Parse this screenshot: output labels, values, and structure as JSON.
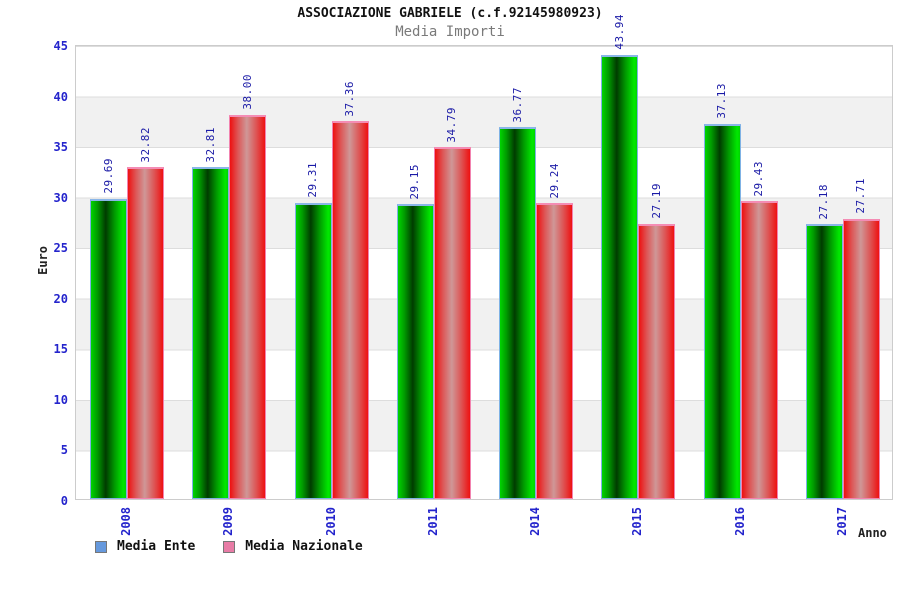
{
  "header": {
    "title": "ASSOCIAZIONE GABRIELE (c.f.92145980923)",
    "subtitle": "Media Importi"
  },
  "axes": {
    "ylabel": "Euro",
    "xlabel": "Anno"
  },
  "legend": {
    "items": [
      {
        "label": "Media Ente",
        "swatch_color": "#6699dd"
      },
      {
        "label": "Media Nazionale",
        "swatch_color": "#e87ca6"
      }
    ]
  },
  "colors": {
    "ente_bar_fill": "#00c800",
    "ente_bar_dark": "#003c00",
    "ente_bar_border": "#7fb2e5",
    "nazionale_bar_fill": "#ee1111",
    "nazionale_bar_highlight": "#cf9797",
    "nazionale_bar_border": "#f283b0",
    "tick_label_color": "#2424cc",
    "value_label_color": "#1a1aa6",
    "band_gray": "#f1f1f1"
  },
  "chart_data": {
    "type": "bar",
    "title": "ASSOCIAZIONE GABRIELE (c.f.92145980923)",
    "subtitle": "Media Importi",
    "xlabel": "Anno",
    "ylabel": "Euro",
    "ylim": [
      0,
      45
    ],
    "ytick_step": 5,
    "grid": "horizontal-bands",
    "legend_position": "bottom-left",
    "categories": [
      "2008",
      "2009",
      "2010",
      "2011",
      "2014",
      "2015",
      "2016",
      "2017"
    ],
    "series": [
      {
        "name": "Media Ente",
        "values": [
          29.69,
          32.81,
          29.31,
          29.15,
          36.77,
          43.94,
          37.13,
          27.18
        ]
      },
      {
        "name": "Media Nazionale",
        "values": [
          32.82,
          38.0,
          37.36,
          34.79,
          29.24,
          27.19,
          29.43,
          27.71
        ]
      }
    ]
  }
}
